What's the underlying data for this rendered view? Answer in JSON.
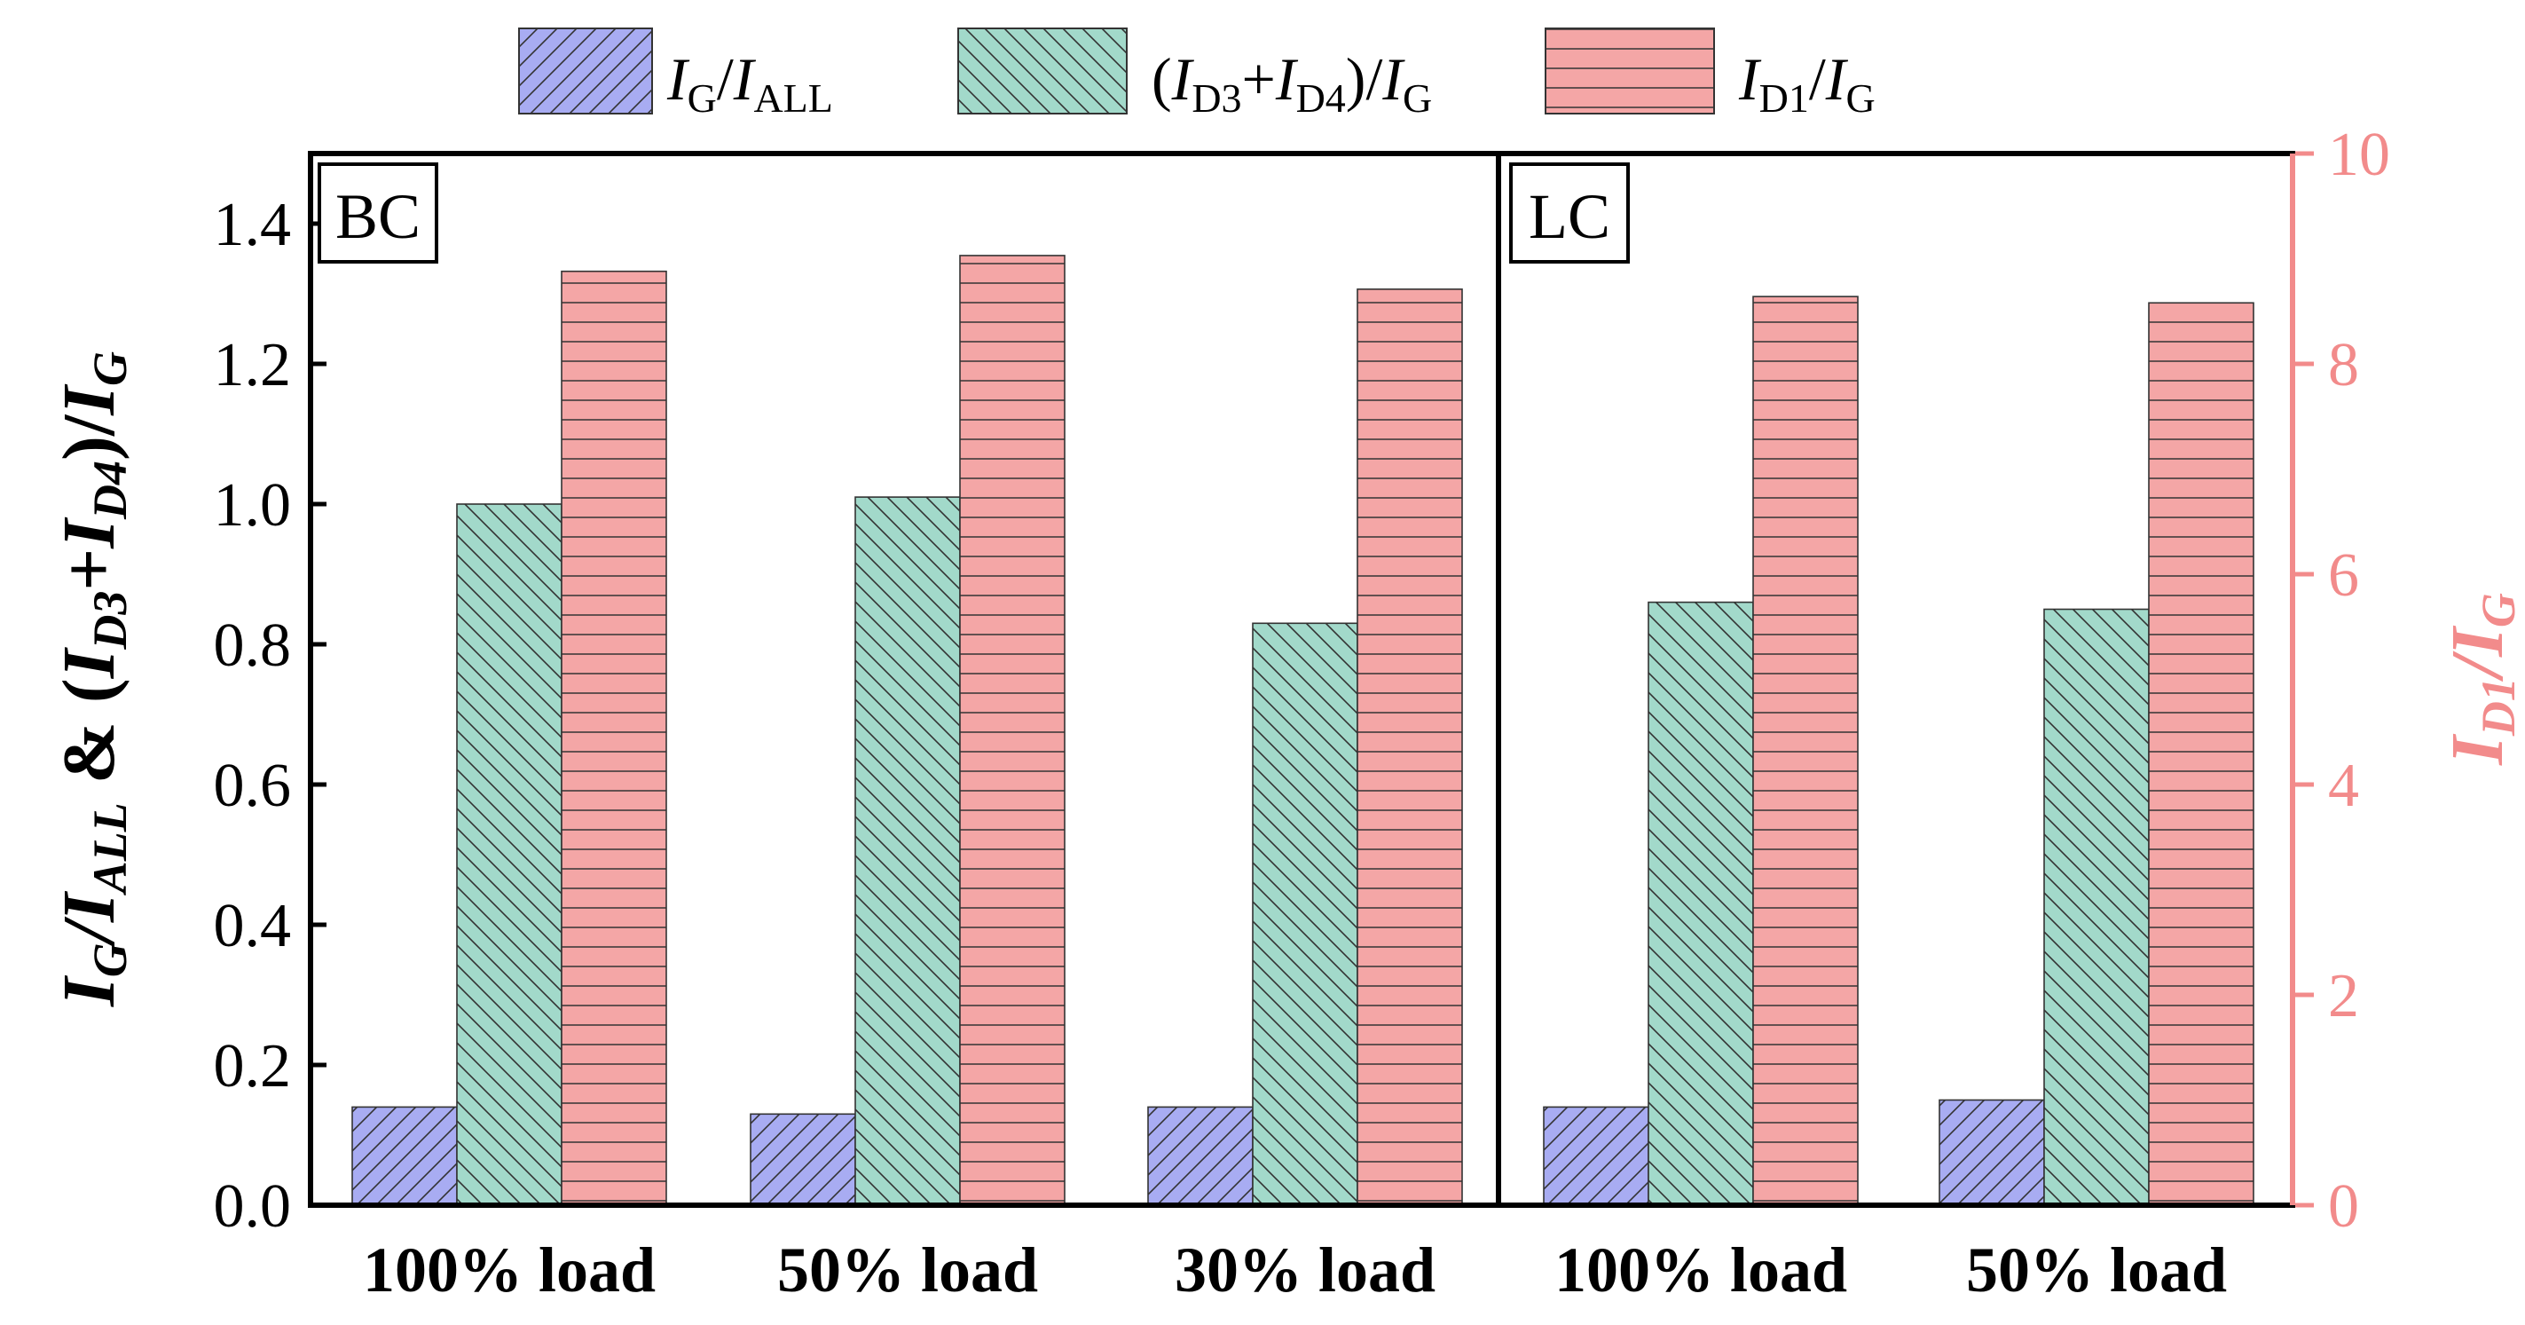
{
  "chart_data": {
    "type": "bar",
    "title": "",
    "panels": [
      {
        "label": "BC",
        "categories": [
          "100% load",
          "50% load",
          "30% load"
        ],
        "series": [
          {
            "name": "IG/IALL",
            "axis": "left",
            "values": [
              0.14,
              0.13,
              0.14
            ]
          },
          {
            "name": "(ID3+ID4)/IG",
            "axis": "left",
            "values": [
              1.0,
              1.01,
              0.83
            ]
          },
          {
            "name": "ID1/IG",
            "axis": "right",
            "values": [
              8.88,
              9.03,
              8.71
            ]
          }
        ]
      },
      {
        "label": "LC",
        "categories": [
          "100% load",
          "50% load"
        ],
        "series": [
          {
            "name": "IG/IALL",
            "axis": "left",
            "values": [
              0.14,
              0.15
            ]
          },
          {
            "name": "(ID3+ID4)/IG",
            "axis": "left",
            "values": [
              0.86,
              0.85
            ]
          },
          {
            "name": "ID1/IG",
            "axis": "right",
            "values": [
              8.64,
              8.58
            ]
          }
        ]
      }
    ],
    "y_left": {
      "label_parts": [
        "I",
        "G",
        "/",
        "I",
        "ALL",
        " & (",
        "I",
        "D3",
        "+",
        "I",
        "D4",
        ")/",
        "I",
        "G"
      ],
      "ylim": [
        0,
        1.5
      ],
      "ticks": [
        0.0,
        0.2,
        0.4,
        0.6,
        0.8,
        1.0,
        1.2,
        1.4
      ],
      "tick_labels": [
        "0.0",
        "0.2",
        "0.4",
        "0.6",
        "0.8",
        "1.0",
        "1.2",
        "1.4"
      ]
    },
    "y_right": {
      "label_parts": [
        "I",
        "D1",
        "/",
        "I",
        "G"
      ],
      "ylim": [
        0,
        10
      ],
      "ticks": [
        0,
        2,
        4,
        6,
        8,
        10
      ],
      "tick_labels": [
        "0",
        "2",
        "4",
        "6",
        "8",
        "10"
      ],
      "color": "#f28b8b"
    },
    "legend": {
      "placement": "top-center",
      "entries": [
        {
          "name": "IG/IALL",
          "parts": [
            "I",
            "G",
            "/",
            "I",
            "ALL"
          ],
          "color": "#a8acf2",
          "hatch": "forward-diagonal"
        },
        {
          "name": "(ID3+ID4)/IG",
          "parts": [
            "(",
            "I",
            "D3",
            "+",
            "I",
            "D4",
            ")/",
            "I",
            "G"
          ],
          "color": "#a2d9ca",
          "hatch": "back-diagonal"
        },
        {
          "name": "ID1/IG",
          "parts": [
            "I",
            "D1",
            "/",
            "I",
            "G"
          ],
          "color": "#f4a6a6",
          "hatch": "horizontal"
        }
      ]
    },
    "grid": false
  }
}
